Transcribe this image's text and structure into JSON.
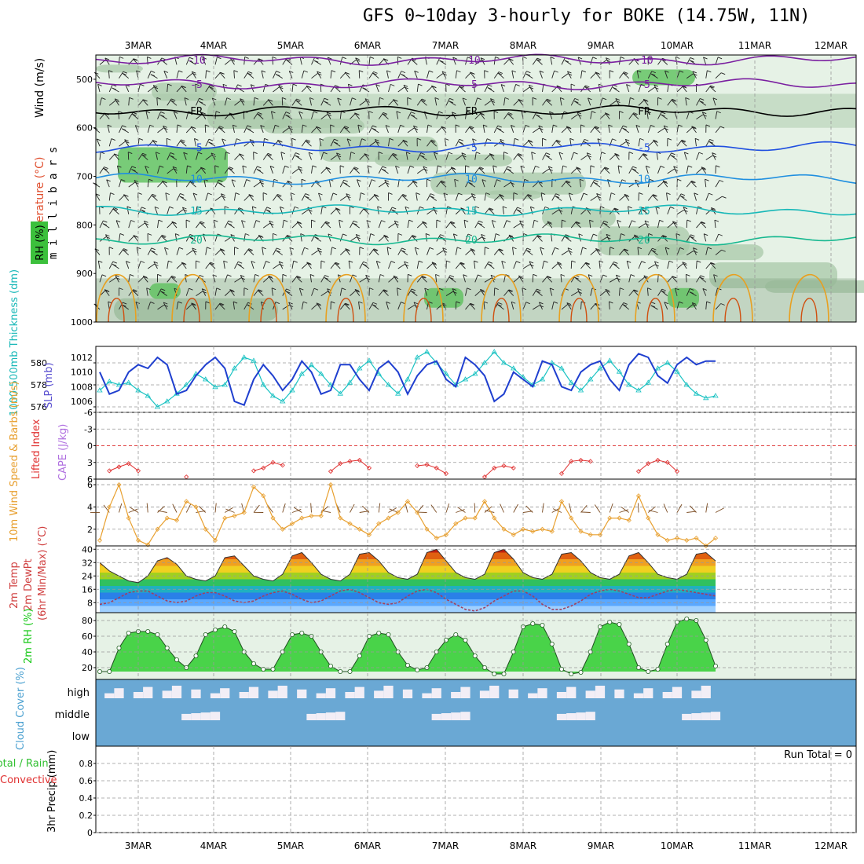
{
  "title": "GFS 0~10day 3-hourly for BOKE (14.75W, 11N)",
  "chart_data": {
    "type": "meteogram",
    "dates": [
      "3MAR",
      "4MAR",
      "5MAR",
      "6MAR",
      "7MAR",
      "8MAR",
      "9MAR",
      "10MAR",
      "11MAR",
      "12MAR"
    ],
    "colors": {
      "panel_bg": "#e6f2e6",
      "rh_fill": "#a8c8a8",
      "rh_dark": "#7fa07f",
      "rh_green": "#5cc05c",
      "cloud_bg": "#6aa8d4",
      "cloud_fill": "#f2eef6",
      "wind_line": "#000000",
      "theta_orange": "#e8a020",
      "thick_line": "#19c2c2",
      "slp_line": "#1f3fcf",
      "li_line": "#e03030",
      "wind10": "#e8a030",
      "rh2m": "#14c814"
    },
    "panels": [
      {
        "name": "upper-air",
        "ylabel": [
          "Wind (m/s)",
          "Temperature (°C)",
          "RH (%)"
        ],
        "axis_label": "millibars",
        "y_ticks": [
          "500",
          "600",
          "700",
          "800",
          "900",
          "1000"
        ],
        "ylim": [
          450,
          1000
        ],
        "isotherms": [
          {
            "label": "-10",
            "pressure": 460
          },
          {
            "label": "-5",
            "pressure": 510
          },
          {
            "label": "FR",
            "pressure": 565
          },
          {
            "label": "-5",
            "pressure": 640
          },
          {
            "label": "10",
            "pressure": 705
          },
          {
            "label": "15",
            "pressure": 770
          },
          {
            "label": "20",
            "pressure": 830
          }
        ]
      },
      {
        "name": "thickness-slp",
        "ylabel_left": "1000-500mb Thickness (dm)",
        "ylabel_right": "SLP (mb)",
        "thickness_ticks": [
          "576",
          "578",
          "580"
        ],
        "slp_ticks": [
          "1006",
          "1008",
          "1010",
          "1012"
        ],
        "thickness_ylim": [
          575.5,
          581.5
        ],
        "slp_ylim": [
          1004.5,
          1013.5
        ],
        "slp": [
          1010,
          1007,
          1007.5,
          1010,
          1011,
          1010.5,
          1012,
          1011,
          1007,
          1007.5,
          1009.5,
          1011,
          1012,
          1010.5,
          1006,
          1005.5,
          1009,
          1011,
          1009.5,
          1007.5,
          1009,
          1011.5,
          1010,
          1007,
          1007.5,
          1011,
          1011,
          1009,
          1007.5,
          1010.5,
          1011.5,
          1010,
          1007,
          1009.5,
          1011,
          1011.5,
          1009,
          1008,
          1012,
          1011,
          1009.5,
          1006,
          1007,
          1010,
          1009,
          1008,
          1011.5,
          1011,
          1008,
          1007.5,
          1010,
          1011,
          1011.5,
          1009,
          1007.5,
          1011,
          1012.5,
          1012,
          1009.5,
          1008.5,
          1011,
          1012,
          1011,
          1011.5,
          1011.5
        ],
        "thickness": [
          577.5,
          578.3,
          578,
          578.2,
          577.5,
          577,
          576,
          576.5,
          577.2,
          578,
          579,
          578.5,
          577.8,
          578,
          579.5,
          580.5,
          580.2,
          578,
          577,
          576.5,
          577.5,
          579,
          579.8,
          579,
          578,
          577.2,
          578.2,
          579.5,
          580.2,
          579,
          578,
          577.2,
          578.5,
          580.5,
          581,
          580,
          579,
          578,
          578.5,
          579,
          580,
          581,
          580,
          579.5,
          578.7,
          578,
          578.5,
          580,
          579.5,
          578.2,
          577.5,
          578.5,
          579.5,
          580.2,
          579.2,
          578,
          577.5,
          578.2,
          579.5,
          580,
          579.2,
          578,
          577.2,
          576.8,
          577
        ]
      },
      {
        "name": "lifted-index-cape",
        "ylabel_left": "Lifted Index",
        "ylabel_right": "CAPE (J/kg)",
        "y_ticks": [
          "-6",
          "-3",
          "0",
          "3",
          "6"
        ],
        "ylim": [
          6,
          -6
        ],
        "lifted_index": [
          null,
          4.5,
          3.8,
          3.2,
          4.5,
          null,
          null,
          null,
          null,
          5.6,
          null,
          null,
          null,
          null,
          null,
          null,
          4.5,
          4,
          3,
          3.5,
          null,
          null,
          null,
          null,
          4.6,
          3.2,
          2.8,
          2.6,
          4,
          null,
          null,
          null,
          null,
          3.6,
          3.4,
          4,
          5,
          null,
          null,
          null,
          5.6,
          4,
          3.6,
          4,
          null,
          null,
          null,
          null,
          5,
          2.8,
          2.6,
          2.8,
          null,
          null,
          null,
          null,
          4.6,
          3.2,
          2.6,
          3,
          4.6,
          null,
          null,
          null,
          null
        ]
      },
      {
        "name": "wind-10m",
        "ylabel": [
          "10m Wind Speed & Barbs (m/s)"
        ],
        "y_ticks": [
          "2",
          "4",
          "6"
        ],
        "ylim": [
          0.5,
          6.5
        ],
        "speed": [
          1,
          4,
          6,
          3,
          1,
          0.6,
          2,
          3,
          2.8,
          4.5,
          4,
          2,
          1,
          3,
          3.2,
          3.5,
          5.8,
          5,
          3,
          2,
          2.5,
          3,
          3.2,
          3.2,
          6,
          3,
          2.5,
          2,
          1.5,
          2.5,
          3,
          3.5,
          4.5,
          3.5,
          2,
          1.2,
          1.5,
          2.5,
          3,
          3,
          4.5,
          3,
          2,
          1.5,
          2,
          1.8,
          2,
          1.8,
          4.5,
          3,
          1.8,
          1.5,
          1.5,
          3,
          3,
          2.8,
          5,
          3,
          1.5,
          1,
          1.2,
          1,
          1.2,
          0.5,
          1.2
        ]
      },
      {
        "name": "temp-dewpoint",
        "ylabel": [
          "2m Temp",
          "2m DewPt",
          "(6hr Min/Max) (°C)"
        ],
        "y_ticks": [
          "8",
          "16",
          "24",
          "32",
          "40"
        ],
        "ylim": [
          2,
          42
        ],
        "temp": [
          32,
          27,
          24,
          21,
          20,
          24,
          33,
          35,
          31,
          24,
          22,
          21,
          24,
          35,
          36,
          30,
          24,
          22,
          21,
          25,
          36,
          38,
          32,
          25,
          22,
          21,
          25,
          37,
          38,
          33,
          26,
          23,
          22,
          25,
          38,
          40,
          33,
          26,
          23,
          22,
          25,
          38,
          40,
          34,
          26,
          23,
          22,
          25,
          37,
          38,
          33,
          26,
          23,
          22,
          25,
          36,
          38,
          32,
          25,
          23,
          22,
          25,
          37,
          38,
          33
        ],
        "dewpoint": [
          7,
          8,
          11,
          14,
          15,
          15,
          12,
          9,
          8,
          9,
          12,
          14,
          14,
          12,
          9,
          8,
          9,
          12,
          14,
          15,
          13,
          10,
          8,
          9,
          12,
          15,
          16,
          14,
          11,
          8,
          7,
          8,
          12,
          15,
          16,
          14,
          10,
          7,
          4,
          3,
          5,
          9,
          12,
          15,
          15,
          12,
          7,
          4,
          4,
          6,
          9,
          13,
          15,
          16,
          15,
          13,
          11,
          11,
          13,
          15,
          16,
          15,
          14,
          13,
          12
        ]
      },
      {
        "name": "rh-2m",
        "ylabel": [
          "2m RH (%)"
        ],
        "y_ticks": [
          "20",
          "40",
          "60",
          "80"
        ],
        "ylim": [
          5,
          90
        ],
        "rh": [
          15,
          15,
          45,
          64,
          66,
          66,
          62,
          45,
          30,
          20,
          35,
          62,
          68,
          72,
          66,
          40,
          25,
          18,
          18,
          40,
          62,
          64,
          60,
          40,
          22,
          15,
          15,
          35,
          60,
          64,
          62,
          40,
          23,
          17,
          20,
          40,
          55,
          62,
          55,
          35,
          20,
          12,
          12,
          40,
          72,
          76,
          74,
          50,
          18,
          12,
          14,
          40,
          72,
          78,
          75,
          50,
          20,
          15,
          18,
          50,
          78,
          82,
          80,
          55,
          22
        ]
      },
      {
        "name": "cloud-cover",
        "ylabel": [
          "Cloud Cover (%)"
        ],
        "levels": [
          "high",
          "middle",
          "low"
        ]
      },
      {
        "name": "precip",
        "ylabel": [
          "3hr Precip (mm)"
        ],
        "side_labels": [
          "Total / Rain",
          "Convective"
        ],
        "y_ticks": [
          "0",
          "0.2",
          "0.4",
          "0.6",
          "0.8"
        ],
        "ylim": [
          0,
          1
        ],
        "run_total": "Run Total = 0"
      }
    ]
  }
}
